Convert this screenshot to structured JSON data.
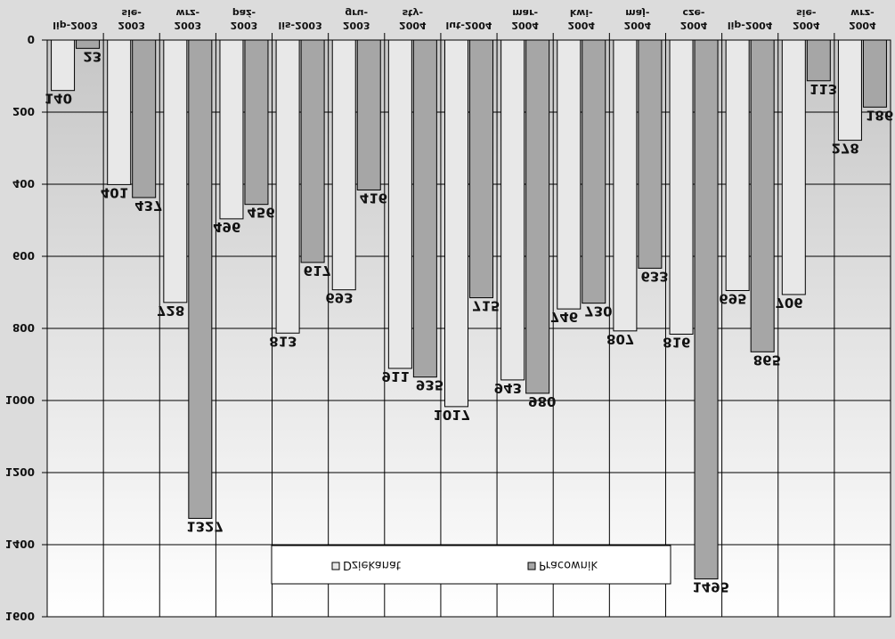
{
  "chart_data": {
    "type": "bar",
    "title": "",
    "xlabel": "",
    "ylabel": "",
    "categories": [
      [
        "lip-2003"
      ],
      [
        "2003",
        "sie-"
      ],
      [
        "2003",
        "wrz-"
      ],
      [
        "2003",
        "paź-"
      ],
      [
        "lis-2003"
      ],
      [
        "2003",
        "gru-"
      ],
      [
        "2004",
        "sty-"
      ],
      [
        "lut-2004"
      ],
      [
        "2004",
        "mar-"
      ],
      [
        "2004",
        "kwi-"
      ],
      [
        "2004",
        "maj-"
      ],
      [
        "2004",
        "cze-"
      ],
      [
        "lip-2004"
      ],
      [
        "2004",
        "sie-"
      ],
      [
        "2004",
        "wrz-"
      ]
    ],
    "series": [
      {
        "name": "Dziekanat",
        "color": "#e8e8e8",
        "values": [
          140,
          401,
          728,
          496,
          813,
          693,
          911,
          1017,
          943,
          746,
          807,
          816,
          695,
          706,
          278
        ]
      },
      {
        "name": "Pracownik",
        "color": "#a6a6a6",
        "values": [
          23,
          437,
          1327,
          456,
          617,
          416,
          935,
          715,
          980,
          730,
          633,
          1495,
          865,
          113,
          186
        ]
      }
    ],
    "ylim": [
      0,
      1600
    ],
    "yticks": [
      "0",
      "200",
      "400",
      "600",
      "800",
      "1000",
      "1200",
      "1400",
      "1600"
    ],
    "grid": true,
    "legend_position": "bottom",
    "orientation": "upside-down (image rotated 180° and mirrored)"
  }
}
